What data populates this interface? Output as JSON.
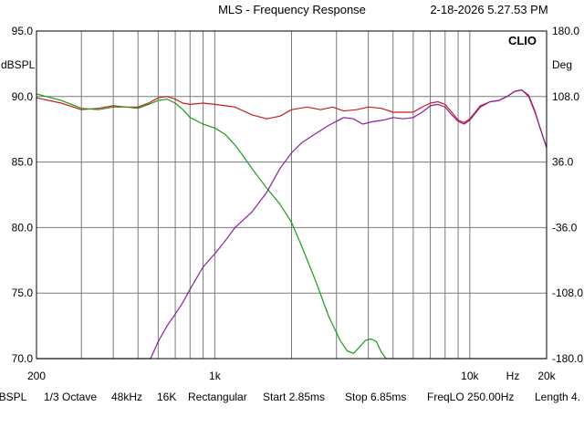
{
  "header": {
    "title": "MLS - Frequency Response",
    "timestamp": "2-18-2026 5.27.53 PM"
  },
  "brand": "CLIO",
  "footer": {
    "items": [
      "dBSPL",
      "1/3 Octave",
      "48kHz",
      "16K",
      "Rectangular",
      "Start 2.85ms",
      "Stop 6.85ms",
      "FreqLO 250.00Hz",
      "Length 4."
    ]
  },
  "chart_data": {
    "type": "line",
    "title": "MLS - Frequency Response",
    "x_scale": "log",
    "xlim": [
      200,
      20000
    ],
    "x_tick_labels": [
      {
        "value": 200,
        "label": "200"
      },
      {
        "value": 1000,
        "label": "1k"
      },
      {
        "value": 10000,
        "label": "10k"
      },
      {
        "value": 20000,
        "label": "20k"
      }
    ],
    "x_unit_label": "Hz",
    "x_gridlines": [
      300,
      400,
      500,
      600,
      700,
      800,
      900,
      1000,
      2000,
      3000,
      4000,
      5000,
      6000,
      7000,
      8000,
      9000,
      10000
    ],
    "ylim": [
      70,
      95
    ],
    "ylabel": "dBSPL",
    "y_ticks": [
      "95.0",
      "90.0",
      "85.0",
      "80.0",
      "75.0",
      "70.0"
    ],
    "y2lim": [
      -180,
      180
    ],
    "y2label": "Deg",
    "y2_ticks": [
      "180.0",
      "108.0",
      "36.0",
      "-36.0",
      "-108.0",
      "-180.0"
    ],
    "grid": true,
    "colors": {
      "red": "#c81e1e",
      "green": "#1a9a1a",
      "purple": "#8a1f9a",
      "grid": "#7a7a7a"
    },
    "series": [
      {
        "color": "red",
        "points": [
          [
            200,
            89.9
          ],
          [
            250,
            89.5
          ],
          [
            300,
            89.0
          ],
          [
            350,
            89.1
          ],
          [
            400,
            89.3
          ],
          [
            450,
            89.2
          ],
          [
            500,
            89.2
          ],
          [
            550,
            89.5
          ],
          [
            600,
            89.9
          ],
          [
            650,
            90.0
          ],
          [
            700,
            89.8
          ],
          [
            750,
            89.5
          ],
          [
            800,
            89.4
          ],
          [
            900,
            89.5
          ],
          [
            1000,
            89.4
          ],
          [
            1200,
            89.2
          ],
          [
            1400,
            88.6
          ],
          [
            1600,
            88.3
          ],
          [
            1800,
            88.5
          ],
          [
            2000,
            89.0
          ],
          [
            2300,
            89.2
          ],
          [
            2600,
            89.0
          ],
          [
            2900,
            89.2
          ],
          [
            3200,
            88.9
          ],
          [
            3600,
            89.0
          ],
          [
            4000,
            89.2
          ],
          [
            4500,
            89.1
          ],
          [
            5000,
            88.8
          ],
          [
            5500,
            88.8
          ],
          [
            6000,
            88.8
          ],
          [
            6500,
            89.2
          ],
          [
            7000,
            89.5
          ],
          [
            7500,
            89.6
          ],
          [
            8000,
            89.4
          ],
          [
            8500,
            88.8
          ],
          [
            9000,
            88.2
          ],
          [
            9500,
            88.0
          ],
          [
            10000,
            88.3
          ],
          [
            11000,
            89.3
          ],
          [
            12000,
            89.6
          ],
          [
            13000,
            89.7
          ],
          [
            14000,
            90.0
          ],
          [
            15000,
            90.4
          ],
          [
            16000,
            90.5
          ],
          [
            17000,
            90.0
          ],
          [
            18000,
            88.8
          ],
          [
            19000,
            87.4
          ],
          [
            20000,
            86.1
          ]
        ]
      },
      {
        "color": "green",
        "points": [
          [
            200,
            90.2
          ],
          [
            250,
            89.7
          ],
          [
            300,
            89.1
          ],
          [
            350,
            89.0
          ],
          [
            400,
            89.2
          ],
          [
            450,
            89.2
          ],
          [
            500,
            89.1
          ],
          [
            550,
            89.4
          ],
          [
            600,
            89.7
          ],
          [
            650,
            89.8
          ],
          [
            700,
            89.5
          ],
          [
            750,
            89.0
          ],
          [
            800,
            88.4
          ],
          [
            900,
            87.9
          ],
          [
            1000,
            87.6
          ],
          [
            1100,
            87.1
          ],
          [
            1200,
            86.3
          ],
          [
            1300,
            85.4
          ],
          [
            1400,
            84.5
          ],
          [
            1600,
            83.0
          ],
          [
            1800,
            81.8
          ],
          [
            2000,
            80.4
          ],
          [
            2200,
            78.5
          ],
          [
            2500,
            75.8
          ],
          [
            2800,
            73.2
          ],
          [
            3100,
            71.4
          ],
          [
            3300,
            70.6
          ],
          [
            3500,
            70.4
          ],
          [
            3700,
            70.9
          ],
          [
            3900,
            71.4
          ],
          [
            4100,
            71.5
          ],
          [
            4300,
            71.3
          ],
          [
            4500,
            70.5
          ],
          [
            4700,
            70.0
          ],
          [
            20000,
            70.0
          ]
        ]
      },
      {
        "color": "purple",
        "points": [
          [
            200,
            70.0
          ],
          [
            560,
            70.0
          ],
          [
            600,
            71.3
          ],
          [
            650,
            72.5
          ],
          [
            700,
            73.4
          ],
          [
            750,
            74.3
          ],
          [
            800,
            75.3
          ],
          [
            900,
            77.0
          ],
          [
            1000,
            78.0
          ],
          [
            1100,
            79.0
          ],
          [
            1200,
            80.0
          ],
          [
            1400,
            81.2
          ],
          [
            1600,
            82.7
          ],
          [
            1800,
            84.5
          ],
          [
            2000,
            85.7
          ],
          [
            2200,
            86.5
          ],
          [
            2500,
            87.2
          ],
          [
            2800,
            87.8
          ],
          [
            3200,
            88.4
          ],
          [
            3500,
            88.3
          ],
          [
            3800,
            87.9
          ],
          [
            4200,
            88.1
          ],
          [
            4600,
            88.2
          ],
          [
            5000,
            88.4
          ],
          [
            5500,
            88.3
          ],
          [
            6000,
            88.4
          ],
          [
            6500,
            88.8
          ],
          [
            7000,
            89.3
          ],
          [
            7500,
            89.4
          ],
          [
            8000,
            89.2
          ],
          [
            8500,
            88.6
          ],
          [
            9000,
            88.1
          ],
          [
            9500,
            87.9
          ],
          [
            10000,
            88.2
          ],
          [
            11000,
            89.2
          ],
          [
            12000,
            89.6
          ],
          [
            13000,
            89.7
          ],
          [
            14000,
            90.0
          ],
          [
            15000,
            90.4
          ],
          [
            16000,
            90.5
          ],
          [
            17000,
            90.1
          ],
          [
            18000,
            88.9
          ],
          [
            19000,
            87.4
          ],
          [
            20000,
            86.1
          ]
        ]
      }
    ]
  }
}
